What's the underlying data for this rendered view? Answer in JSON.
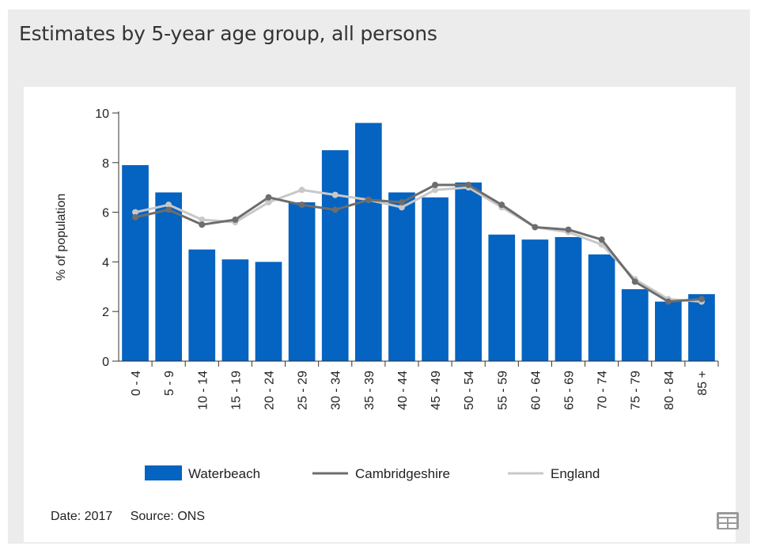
{
  "header": {
    "title": "Estimates by 5-year age group, all persons"
  },
  "footer": {
    "date": "Date: 2017",
    "source": "Source: ONS"
  },
  "icons": {
    "table_view": "table-icon"
  },
  "colors": {
    "waterbeach": "#0563c1",
    "cambridgeshire": "#6d6d6d",
    "england": "#c8c8c8"
  },
  "chart_data": {
    "type": "bar",
    "ylabel": "% of population",
    "xlabel": "",
    "ylim": [
      0,
      10
    ],
    "yticks": [
      0,
      2,
      4,
      6,
      8,
      10
    ],
    "grid": false,
    "legend_position": "bottom",
    "categories": [
      "0 - 4",
      "5 - 9",
      "10 - 14",
      "15 - 19",
      "20 - 24",
      "25 - 29",
      "30 - 34",
      "35 - 39",
      "40 - 44",
      "45 - 49",
      "50 - 54",
      "55 - 59",
      "60 - 64",
      "65 - 69",
      "70 - 74",
      "75 - 79",
      "80 - 84",
      "85 +"
    ],
    "series": [
      {
        "name": "Waterbeach",
        "type": "bar",
        "values": [
          7.9,
          6.8,
          4.5,
          4.1,
          4.0,
          6.4,
          8.5,
          9.6,
          6.8,
          6.6,
          7.2,
          5.1,
          4.9,
          5.0,
          4.3,
          2.9,
          2.4,
          2.7
        ]
      },
      {
        "name": "Cambridgeshire",
        "type": "line",
        "values": [
          5.8,
          6.1,
          5.5,
          5.7,
          6.6,
          6.3,
          6.1,
          6.5,
          6.4,
          7.1,
          7.1,
          6.3,
          5.4,
          5.3,
          4.9,
          3.2,
          2.4,
          2.5
        ]
      },
      {
        "name": "England",
        "type": "line",
        "values": [
          6.0,
          6.3,
          5.7,
          5.6,
          6.4,
          6.9,
          6.7,
          6.5,
          6.2,
          6.9,
          7.0,
          6.2,
          5.4,
          5.2,
          4.7,
          3.3,
          2.5,
          2.4
        ]
      }
    ]
  }
}
